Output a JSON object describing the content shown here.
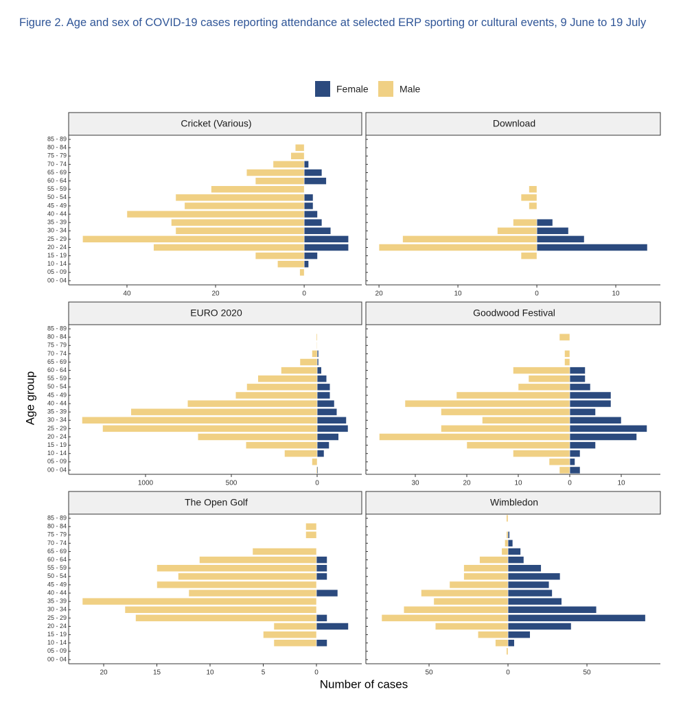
{
  "title": "Figure 2. Age and sex of COVID-19 cases reporting attendance at selected ERP sporting or cultural events, 9 June to 19 July",
  "y_label": "Age group",
  "x_label": "Number of cases",
  "categories": [
    "00 - 04",
    "05 - 09",
    "10 - 14",
    "15 - 19",
    "20 - 24",
    "25 - 29",
    "30 - 34",
    "35 - 39",
    "40 - 44",
    "45 - 49",
    "50 - 54",
    "55 - 59",
    "60 - 64",
    "65 - 69",
    "70 - 74",
    "75 - 79",
    "80 - 84",
    "85 - 89"
  ],
  "legend": [
    {
      "name": "Female",
      "color": "#2b4a7e"
    },
    {
      "name": "Male",
      "color": "#f0d084"
    }
  ],
  "chart_data": [
    {
      "type": "pyramid",
      "title": "Cricket (Various)",
      "xlim": [
        -52.7,
        13
      ],
      "xticks": [
        {
          "value": -40,
          "label": "40"
        },
        {
          "value": -20,
          "label": "20"
        },
        0
      ],
      "series": [
        {
          "values": [
            0,
            0,
            1,
            3,
            10,
            10,
            6,
            4,
            3,
            2,
            2,
            0,
            5,
            4,
            1,
            0,
            0,
            0
          ]
        },
        {
          "values": [
            0,
            1,
            6,
            11,
            34,
            50,
            29,
            30,
            40,
            27,
            29,
            21,
            11,
            13,
            7,
            3,
            2,
            0
          ]
        }
      ]
    },
    {
      "type": "pyramid",
      "title": "Download",
      "xlim": [
        -21.4,
        15.65
      ],
      "xticks": [
        {
          "value": -20,
          "label": "20"
        },
        {
          "value": -10,
          "label": "10"
        },
        0,
        10
      ],
      "series": [
        {
          "values": [
            0,
            0,
            0,
            0,
            14,
            6,
            4,
            2,
            0,
            0,
            0,
            0,
            0,
            0,
            0,
            0,
            0,
            0
          ]
        },
        {
          "values": [
            0,
            0,
            0,
            2,
            20,
            17,
            5,
            3,
            0,
            1,
            2,
            1,
            0,
            0,
            0,
            0,
            0,
            0
          ]
        }
      ]
    },
    {
      "type": "pyramid",
      "title": "EURO 2020",
      "xlim": [
        -1436,
        260
      ],
      "xticks": [
        {
          "value": -1000,
          "label": "1000"
        },
        {
          "value": -500,
          "label": "500"
        },
        0
      ],
      "series": [
        {
          "values": [
            5,
            0,
            40,
            70,
            125,
            180,
            170,
            115,
            100,
            75,
            75,
            55,
            25,
            8,
            8,
            0,
            0,
            0
          ]
        },
        {
          "values": [
            5,
            30,
            190,
            415,
            695,
            1250,
            1370,
            1085,
            755,
            475,
            410,
            345,
            210,
            100,
            30,
            3,
            5,
            0
          ]
        }
      ]
    },
    {
      "type": "pyramid",
      "title": "Goodwood Festival",
      "xlim": [
        -39.2,
        17.6
      ],
      "xticks": [
        {
          "value": -30,
          "label": "30"
        },
        {
          "value": -20,
          "label": "20"
        },
        {
          "value": -10,
          "label": "10"
        },
        0,
        10
      ],
      "series": [
        {
          "values": [
            2,
            1,
            2,
            5,
            13,
            15,
            10,
            5,
            8,
            8,
            4,
            3,
            3,
            0,
            0,
            0,
            0,
            0
          ]
        },
        {
          "values": [
            2,
            4,
            11,
            20,
            37,
            25,
            17,
            25,
            32,
            22,
            10,
            8,
            11,
            1,
            1,
            0,
            2,
            0
          ]
        }
      ]
    },
    {
      "type": "pyramid",
      "title": "The Open Golf",
      "xlim": [
        -23.1,
        4.26
      ],
      "xticks": [
        {
          "value": -20,
          "label": "20"
        },
        {
          "value": -15,
          "label": "15"
        },
        {
          "value": -10,
          "label": "10"
        },
        {
          "value": -5,
          "label": "5"
        },
        0
      ],
      "series": [
        {
          "values": [
            0,
            0,
            1,
            0,
            3,
            1,
            0,
            0,
            2,
            0,
            1,
            1,
            1,
            0,
            0,
            0,
            0,
            0
          ]
        },
        {
          "values": [
            0,
            0,
            4,
            5,
            4,
            17,
            18,
            22,
            12,
            15,
            13,
            15,
            11,
            6,
            0,
            1,
            1,
            0
          ]
        }
      ]
    },
    {
      "type": "pyramid",
      "title": "Wimbledon",
      "xlim": [
        -88.7,
        96.5
      ],
      "xticks": [
        {
          "value": -50,
          "label": "50"
        },
        0,
        50
      ],
      "series": [
        {
          "values": [
            0,
            0,
            4,
            14,
            40,
            87,
            56,
            34,
            28,
            26,
            33,
            21,
            10,
            8,
            3,
            1,
            0,
            0
          ]
        },
        {
          "values": [
            0,
            1,
            8,
            19,
            46,
            80,
            66,
            47,
            55,
            37,
            28,
            28,
            18,
            4,
            2,
            1,
            0,
            1
          ]
        }
      ]
    }
  ]
}
